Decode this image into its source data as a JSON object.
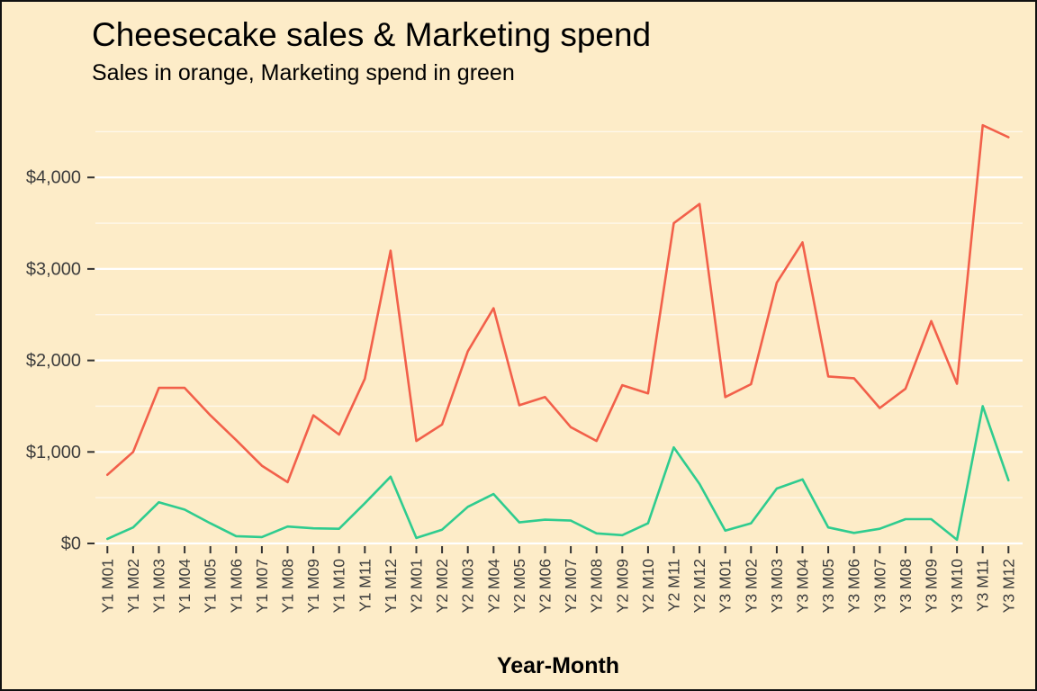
{
  "header": {
    "title": "Cheesecake sales & Marketing spend",
    "subtitle": "Sales in orange, Marketing spend in green"
  },
  "colors": {
    "background": "#FDECC8",
    "frame_border": "#111111",
    "sales_line": "#F2604A",
    "marketing_line": "#2FCC8F",
    "grid_major": "#FFFFFF",
    "grid_minor": "rgba(255,255,255,0.65)",
    "axis_text": "#3D3D3D",
    "tick_mark": "#333333"
  },
  "chart_data": {
    "type": "line",
    "title": "Cheesecake sales & Marketing spend",
    "subtitle": "Sales in orange, Marketing spend in green",
    "xlabel": "Year-Month",
    "ylabel": "",
    "legend_position": "none",
    "grid": "major+minor horizontal, white on cream",
    "x_tick_rotation": -90,
    "categories": [
      "Y1 M01",
      "Y1 M02",
      "Y1 M03",
      "Y1 M04",
      "Y1 M05",
      "Y1 M06",
      "Y1 M07",
      "Y1 M08",
      "Y1 M09",
      "Y1 M10",
      "Y1 M11",
      "Y1 M12",
      "Y2 M01",
      "Y2 M02",
      "Y2 M03",
      "Y2 M04",
      "Y2 M05",
      "Y2 M06",
      "Y2 M07",
      "Y2 M08",
      "Y2 M09",
      "Y2 M10",
      "Y2 M11",
      "Y2 M12",
      "Y3 M01",
      "Y3 M02",
      "Y3 M03",
      "Y3 M04",
      "Y3 M05",
      "Y3 M06",
      "Y3 M07",
      "Y3 M08",
      "Y3 M09",
      "Y3 M10",
      "Y3 M11",
      "Y3 M12"
    ],
    "series": [
      {
        "name": "Sales",
        "color_key": "sales_line",
        "values": [
          750,
          1000,
          1700,
          1700,
          1400,
          1130,
          850,
          670,
          1400,
          1190,
          1800,
          3200,
          1120,
          1300,
          2100,
          2570,
          1510,
          1600,
          1270,
          1120,
          1730,
          1640,
          3500,
          3710,
          1600,
          1740,
          2850,
          3290,
          1825,
          1805,
          1480,
          1690,
          2430,
          1745,
          4570,
          4440
        ]
      },
      {
        "name": "Marketing spend",
        "color_key": "marketing_line",
        "values": [
          50,
          175,
          450,
          370,
          220,
          80,
          70,
          185,
          165,
          160,
          440,
          730,
          60,
          150,
          400,
          540,
          230,
          260,
          250,
          110,
          90,
          220,
          1050,
          650,
          140,
          220,
          600,
          700,
          175,
          115,
          160,
          265,
          265,
          40,
          1500,
          690
        ]
      }
    ],
    "y_ticks": [
      "$0",
      "$1,000",
      "$2,000",
      "$3,000",
      "$4,000"
    ],
    "y_tick_values": [
      0,
      1000,
      2000,
      3000,
      4000
    ],
    "y_minor_values": [
      500,
      1500,
      2500,
      3500,
      4500
    ],
    "ylim": [
      0,
      4660
    ]
  }
}
